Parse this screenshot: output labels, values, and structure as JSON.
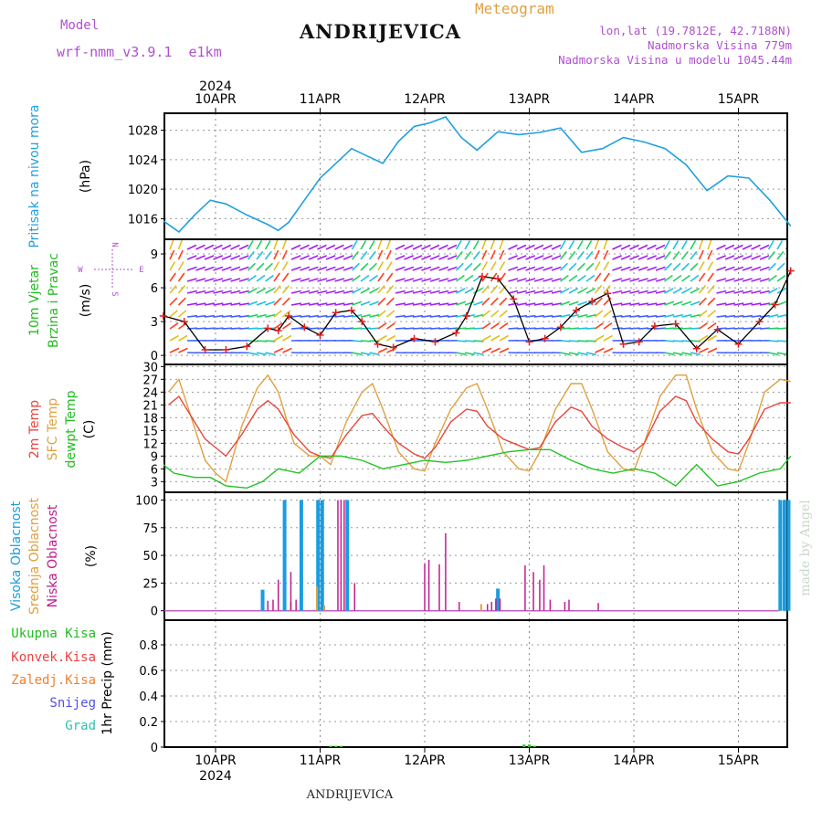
{
  "header": {
    "model_label": "Model",
    "model_value": "wrf-nmm_v3.9.1  e1km",
    "location": "ANDRIJEVICA",
    "product": "Meteogram",
    "lonlat": "lon,lat (19.7812E, 42.7188N)",
    "elevation": "Nadmorska Visina 779m",
    "model_elevation": "Nadmorska Visina u modelu 1045.44m",
    "year": "2024",
    "footer_location": "ANDRIJEVICA",
    "credit": "made by Angel"
  },
  "colors": {
    "pressure": "#1fa0e0",
    "temp2m": "#e8453c",
    "sfc": "#e0a040",
    "dewpt": "#22c322",
    "high_cloud": "#1a9de0",
    "low_cloud": "#c01d8c",
    "mid_cloud": "#e0a040",
    "label_green": "#22bb22",
    "label_red": "#ee4040",
    "label_orange": "#f08030",
    "label_blue": "#5050e0",
    "label_teal": "#30c0b0",
    "label_purple": "#b050d0"
  },
  "axis": {
    "date_labels": [
      "10APR",
      "11APR",
      "12APR",
      "13APR",
      "14APR",
      "15APR"
    ]
  },
  "panels": {
    "pressure": {
      "ylabel1": "Pritisak na nivou mora",
      "ylabel2": "(hPa)",
      "ticks": [
        "1016",
        "1020",
        "1024",
        "1028"
      ]
    },
    "wind": {
      "ylabel1": "10m Vjetar",
      "ylabel2": "Brzina i Pravac",
      "unit": "(m/s)",
      "ticks": [
        "0",
        "3",
        "6",
        "9"
      ],
      "compass_n": "N",
      "compass_s": "S",
      "compass_e": "E",
      "compass_w": "W"
    },
    "temp": {
      "label1": "2m Temp",
      "label2": "SFC Temp",
      "label3": "dewpt Temp",
      "unit": "(C)",
      "ticks": [
        "3",
        "6",
        "9",
        "12",
        "15",
        "18",
        "21",
        "24",
        "27",
        "30"
      ]
    },
    "cloud": {
      "label1": "Visoka Oblacnost",
      "label2": "Srednja Oblacnost",
      "label3": "Niska Oblacnost",
      "unit": "(%)",
      "ticks": [
        "0",
        "25",
        "50",
        "75",
        "100"
      ]
    },
    "precip": {
      "ylabel": "1hr Precip (mm)",
      "ticks": [
        "0",
        "0.2",
        "0.4",
        "0.6",
        "0.8"
      ],
      "legend": [
        "Ukupna Kisa",
        "Konvek.Kisa",
        "Zaledj.Kisa",
        "Snijeg",
        "Grad"
      ]
    }
  },
  "chart_data": [
    {
      "type": "line",
      "title": "Pritisak na nivou mora",
      "ylabel": "(hPa)",
      "x_unit": "days since 10APR 00",
      "ylim": [
        1013.2,
        1030.3
      ],
      "series": [
        {
          "name": "Pritisak na nivou mora",
          "x": [
            -0.5,
            -0.35,
            -0.2,
            -0.05,
            0.1,
            0.3,
            0.5,
            0.6,
            0.7,
            0.85,
            1.0,
            1.15,
            1.3,
            1.45,
            1.6,
            1.75,
            1.9,
            2.05,
            2.2,
            2.35,
            2.5,
            2.7,
            2.9,
            3.1,
            3.3,
            3.5,
            3.7,
            3.9,
            4.1,
            4.3,
            4.5,
            4.7,
            4.9,
            5.1,
            5.3,
            5.5
          ],
          "values": [
            1015.7,
            1014.2,
            1016.5,
            1018.5,
            1018.0,
            1016.5,
            1015.2,
            1014.4,
            1015.5,
            1018.5,
            1021.5,
            1023.5,
            1025.5,
            1024.5,
            1023.5,
            1026.5,
            1028.5,
            1029.0,
            1029.8,
            1027.0,
            1025.3,
            1027.8,
            1027.4,
            1027.7,
            1028.3,
            1025.0,
            1025.5,
            1027.0,
            1026.4,
            1025.5,
            1023.3,
            1019.8,
            1021.8,
            1021.5,
            1018.5,
            1015.0
          ]
        }
      ]
    },
    {
      "type": "line",
      "title": "10m Vjetar Brzina i Pravac",
      "ylabel": "(m/s)",
      "ylim": [
        -0.8,
        10.3
      ],
      "series": [
        {
          "name": "wind speed",
          "x": [
            -0.5,
            -0.3,
            -0.1,
            0.1,
            0.3,
            0.5,
            0.6,
            0.7,
            0.85,
            1.0,
            1.15,
            1.3,
            1.4,
            1.55,
            1.7,
            1.9,
            2.1,
            2.3,
            2.4,
            2.55,
            2.7,
            2.85,
            3.0,
            3.15,
            3.3,
            3.45,
            3.6,
            3.75,
            3.9,
            4.05,
            4.2,
            4.4,
            4.6,
            4.8,
            5.0,
            5.2,
            5.35,
            5.5
          ],
          "values": [
            3.5,
            3.0,
            0.5,
            0.5,
            0.8,
            2.4,
            2.2,
            3.5,
            2.5,
            1.8,
            3.8,
            4.0,
            3.0,
            1.0,
            0.7,
            1.5,
            1.2,
            2.0,
            3.5,
            7.0,
            6.8,
            5.0,
            1.2,
            1.5,
            2.5,
            4.0,
            4.8,
            5.5,
            1.0,
            1.2,
            2.6,
            2.8,
            0.6,
            2.3,
            1.0,
            3.0,
            4.5,
            7.5
          ]
        }
      ]
    },
    {
      "type": "line",
      "title": "2m Temp / SFC Temp / dewpt Temp",
      "ylabel": "(C)",
      "ylim": [
        0.5,
        30.5
      ],
      "series": [
        {
          "name": "2m Temp",
          "x": [
            -0.45,
            -0.35,
            -0.1,
            0.0,
            0.1,
            0.25,
            0.4,
            0.5,
            0.6,
            0.75,
            0.9,
            1.0,
            1.1,
            1.25,
            1.4,
            1.5,
            1.6,
            1.75,
            1.9,
            2.0,
            2.1,
            2.25,
            2.4,
            2.5,
            2.6,
            2.75,
            2.9,
            3.0,
            3.1,
            3.25,
            3.4,
            3.5,
            3.6,
            3.75,
            3.9,
            4.0,
            4.1,
            4.25,
            4.4,
            4.5,
            4.6,
            4.75,
            4.9,
            5.0,
            5.1,
            5.25,
            5.4,
            5.5
          ],
          "values": [
            21,
            23,
            13,
            11,
            9,
            14,
            20,
            22,
            20,
            14,
            10,
            9,
            8.5,
            14,
            18.5,
            19,
            16,
            12,
            9.5,
            8.5,
            11,
            17,
            20,
            19.5,
            16,
            13,
            11.5,
            10.5,
            11,
            17,
            20.5,
            19.5,
            16,
            13,
            11,
            10,
            12,
            19.5,
            23,
            22,
            17,
            13,
            10,
            9.5,
            13,
            20,
            21.5,
            21.5
          ]
        },
        {
          "name": "SFC Temp",
          "x": [
            -0.45,
            -0.35,
            -0.1,
            0.0,
            0.1,
            0.25,
            0.4,
            0.5,
            0.6,
            0.75,
            0.9,
            1.0,
            1.1,
            1.25,
            1.4,
            1.5,
            1.6,
            1.75,
            1.9,
            2.0,
            2.1,
            2.25,
            2.4,
            2.5,
            2.6,
            2.75,
            2.9,
            3.0,
            3.1,
            3.25,
            3.4,
            3.5,
            3.6,
            3.75,
            3.9,
            4.0,
            4.1,
            4.25,
            4.4,
            4.5,
            4.6,
            4.75,
            4.9,
            5.0,
            5.1,
            5.25,
            5.4,
            5.5
          ],
          "values": [
            24,
            27,
            8,
            5,
            3,
            16,
            25,
            28,
            24,
            12,
            9,
            9,
            7,
            17,
            24,
            26,
            20,
            10,
            6,
            5.5,
            12,
            20,
            25,
            26,
            20,
            10,
            6,
            5.5,
            10,
            20,
            26,
            26,
            20,
            10,
            6,
            5.5,
            12,
            23,
            28,
            28,
            20,
            10,
            6,
            5.5,
            12,
            24,
            27,
            26.5
          ]
        },
        {
          "name": "dewpt Temp",
          "x": [
            -0.5,
            -0.4,
            -0.2,
            -0.05,
            0.1,
            0.3,
            0.45,
            0.6,
            0.8,
            1.0,
            1.2,
            1.4,
            1.6,
            1.8,
            2.0,
            2.2,
            2.4,
            2.6,
            2.8,
            3.0,
            3.2,
            3.4,
            3.6,
            3.8,
            4.0,
            4.2,
            4.4,
            4.6,
            4.8,
            5.0,
            5.2,
            5.4,
            5.5
          ],
          "values": [
            7,
            5,
            4,
            4,
            2,
            1.5,
            3,
            6,
            5,
            9,
            9,
            8,
            6,
            7,
            8,
            7.5,
            8,
            9,
            10,
            10.5,
            10.5,
            8,
            6,
            5,
            6,
            5,
            2,
            7,
            2,
            3,
            5,
            6,
            9
          ]
        }
      ]
    },
    {
      "type": "bar",
      "title": "Visoka / Srednja / Niska Oblacnost",
      "ylabel": "(%)",
      "ylim": [
        0,
        100
      ],
      "series": [
        {
          "name": "Visoka Oblacnost",
          "x": [
            0.45,
            0.66,
            0.82,
            0.98,
            1.02,
            1.26,
            2.7,
            5.4,
            5.44,
            5.48
          ],
          "values": [
            19,
            100,
            100,
            100,
            100,
            100,
            20,
            100,
            100,
            100
          ]
        },
        {
          "name": "Srednja Oblacnost",
          "x": [
            0.72,
            0.97,
            1.04,
            2.54
          ],
          "values": [
            8,
            22,
            5,
            6
          ]
        },
        {
          "name": "Niska Oblacnost",
          "x": [
            0.5,
            0.55,
            0.6,
            0.72,
            0.77,
            1.17,
            1.2,
            1.23,
            1.33,
            2.0,
            2.04,
            2.14,
            2.2,
            2.33,
            2.6,
            2.64,
            2.68,
            2.72,
            2.96,
            3.04,
            3.1,
            3.14,
            3.2,
            3.34,
            3.38,
            3.66
          ],
          "values": [
            9,
            10,
            28,
            35,
            10,
            100,
            100,
            100,
            25,
            43,
            46,
            42,
            70,
            8,
            6,
            8,
            11,
            11,
            41,
            35,
            28,
            41,
            10,
            8,
            10,
            7
          ]
        }
      ]
    },
    {
      "type": "bar",
      "title": "1hr Precip",
      "ylabel": "1hr Precip (mm)",
      "ylim": [
        0,
        1.0
      ],
      "series": [
        {
          "name": "Ukupna Kisa",
          "x": [
            1.1,
            1.15,
            1.2,
            2.95,
            3.0,
            3.05
          ],
          "values": [
            0.01,
            0.01,
            0.01,
            0.02,
            0.02,
            0.01
          ]
        }
      ]
    }
  ]
}
